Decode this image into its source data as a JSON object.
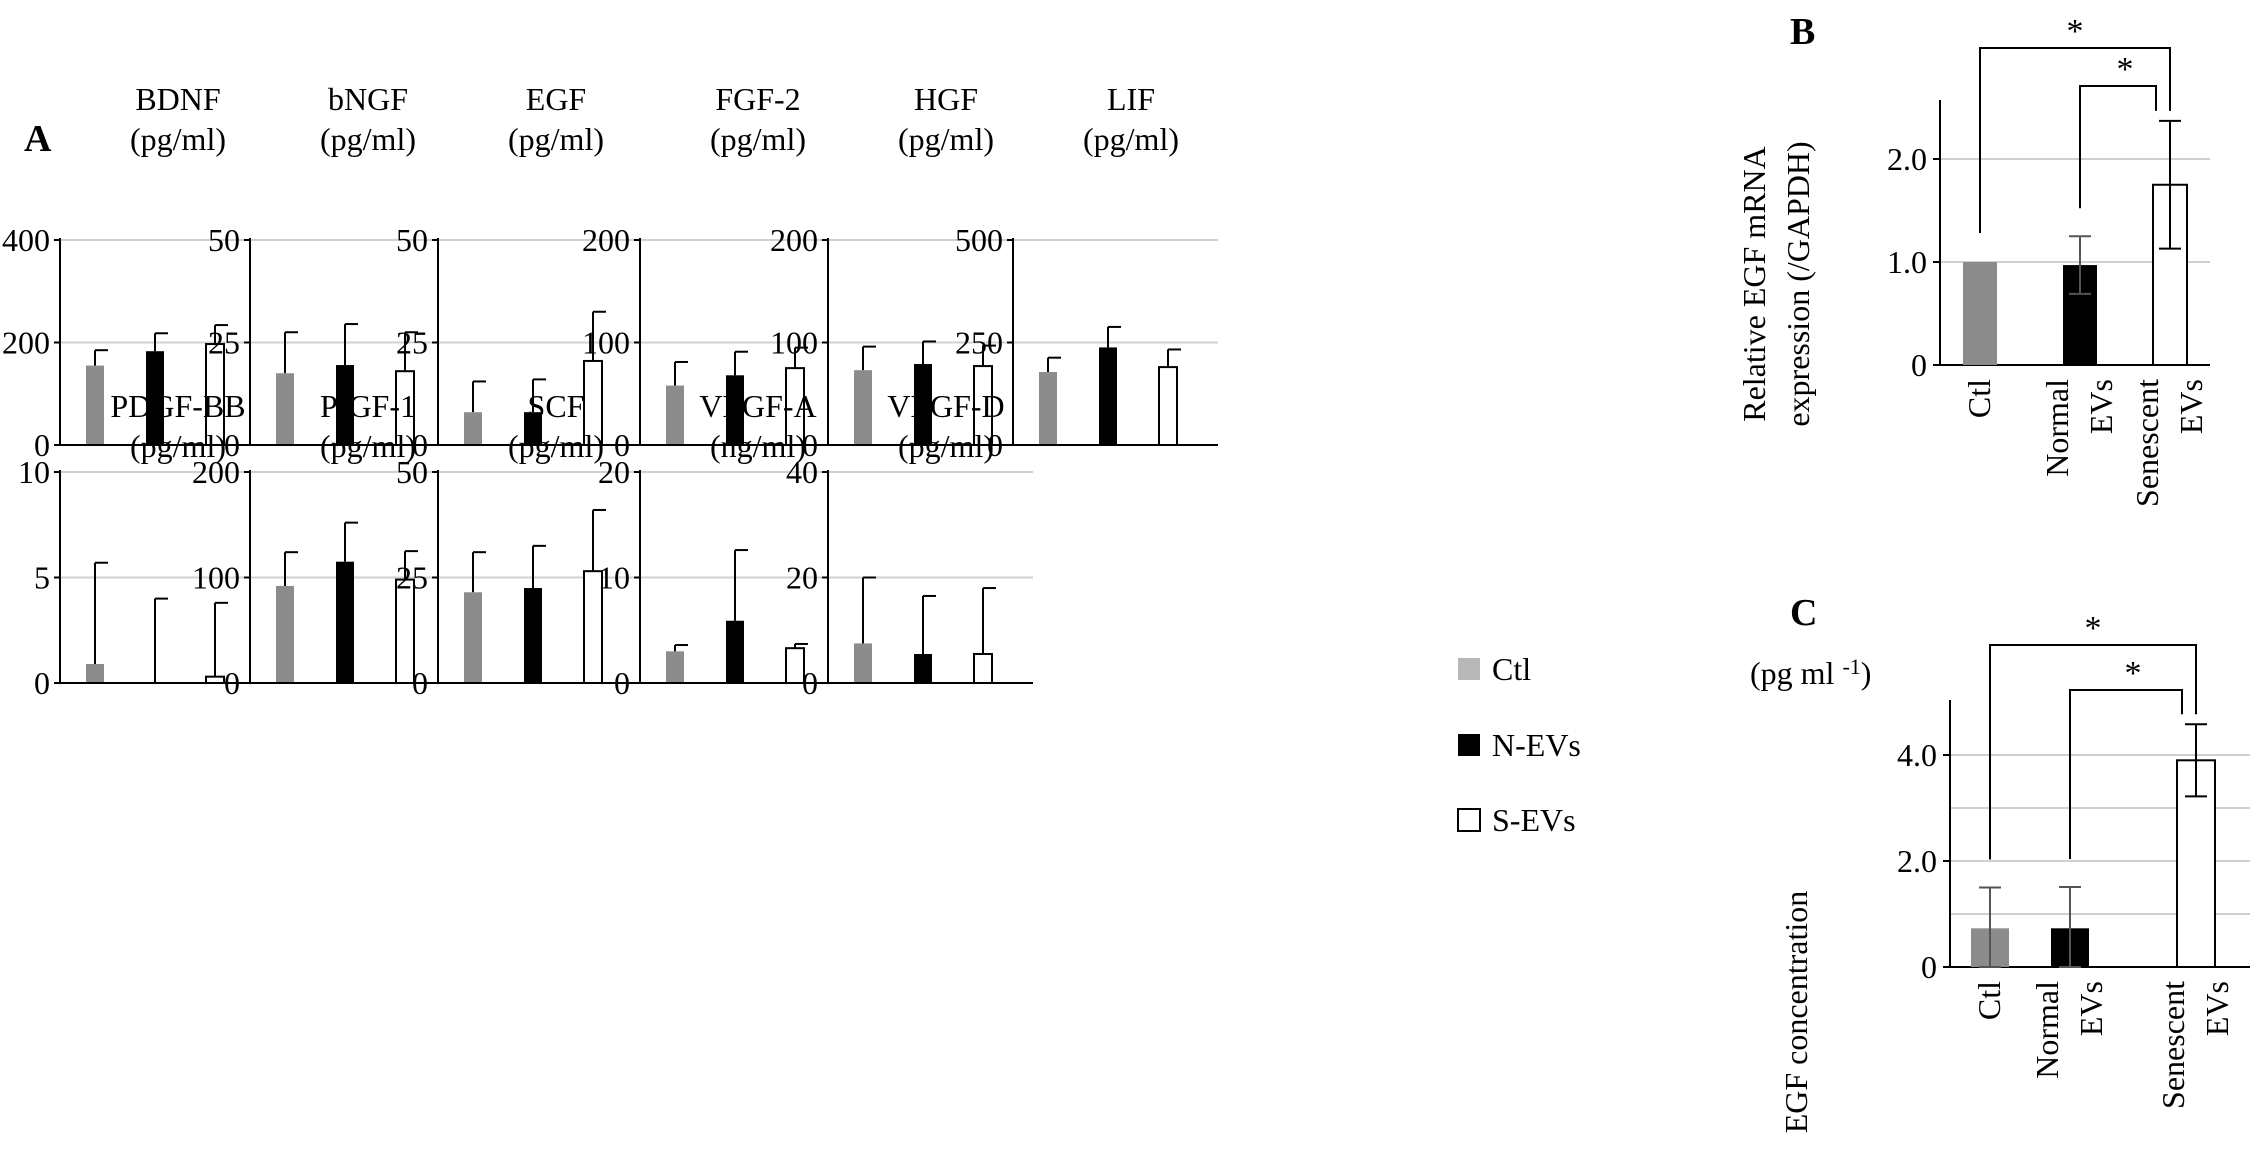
{
  "panel_letters": [
    "A",
    "B",
    "C"
  ],
  "legend": [
    {
      "label": "Ctl",
      "color": "#b8b8b8"
    },
    {
      "label": "N-EVs",
      "color": "#000000"
    },
    {
      "label": "S-EVs",
      "color": "#ffffff"
    }
  ],
  "colors": {
    "ctl_bar": "#8c8c8c",
    "nev_bar": "#000000",
    "sev_bar": "#ffffff",
    "grid": "#d0d0d0"
  },
  "chart_data": [
    {
      "type": "bar",
      "panel": "A",
      "title": "BDNF",
      "unit": "(pg/ml)",
      "categories": [
        "Ctl",
        "N-EVs",
        "S-EVs"
      ],
      "values": [
        155,
        183,
        197
      ],
      "errors": [
        30,
        35,
        37
      ],
      "ylim": [
        0,
        400
      ],
      "yticks": [
        "0",
        "200",
        "400"
      ],
      "ytick_values": [
        0,
        200,
        400
      ]
    },
    {
      "type": "bar",
      "panel": "A",
      "title": "bNGF",
      "unit": "(pg/ml)",
      "categories": [
        "Ctl",
        "N-EVs",
        "S-EVs"
      ],
      "values": [
        17.5,
        19.5,
        18
      ],
      "errors": [
        10,
        10,
        9.5
      ],
      "ylim": [
        0,
        50
      ],
      "yticks": [
        "0",
        "25",
        "50"
      ],
      "ytick_values": [
        0,
        25,
        50
      ]
    },
    {
      "type": "bar",
      "panel": "A",
      "title": "EGF",
      "unit": "(pg/ml)",
      "categories": [
        "Ctl",
        "N-EVs",
        "S-EVs"
      ],
      "values": [
        8,
        8,
        20.5
      ],
      "errors": [
        7.5,
        8,
        12
      ],
      "ylim": [
        0,
        50
      ],
      "yticks": [
        "0",
        "25",
        "50"
      ],
      "ytick_values": [
        0,
        25,
        50
      ]
    },
    {
      "type": "bar",
      "panel": "A",
      "title": "FGF-2",
      "unit": "(pg/ml)",
      "categories": [
        "Ctl",
        "N-EVs",
        "S-EVs"
      ],
      "values": [
        58,
        68,
        75
      ],
      "errors": [
        23,
        23,
        20
      ],
      "ylim": [
        0,
        200
      ],
      "yticks": [
        "0",
        "100",
        "200"
      ],
      "ytick_values": [
        0,
        100,
        200
      ]
    },
    {
      "type": "bar",
      "panel": "A",
      "title": "HGF",
      "unit": "(pg/ml)",
      "categories": [
        "Ctl",
        "N-EVs",
        "S-EVs"
      ],
      "values": [
        73,
        79,
        77
      ],
      "errors": [
        23,
        22,
        20
      ],
      "ylim": [
        0,
        200
      ],
      "yticks": [
        "0",
        "100",
        "200"
      ],
      "ytick_values": [
        0,
        100,
        200
      ]
    },
    {
      "type": "bar",
      "panel": "A",
      "title": "LIF",
      "unit": "(pg/ml)",
      "categories": [
        "Ctl",
        "N-EVs",
        "S-EVs"
      ],
      "values": [
        178,
        238,
        190
      ],
      "errors": [
        35,
        50,
        43
      ],
      "ylim": [
        0,
        500
      ],
      "yticks": [
        "0",
        "250",
        "500"
      ],
      "ytick_values": [
        0,
        250,
        500
      ]
    },
    {
      "type": "bar",
      "panel": "A",
      "title": "PDGF-BB",
      "unit": "(pg/ml)",
      "categories": [
        "Ctl",
        "N-EVs",
        "S-EVs"
      ],
      "values": [
        0.9,
        0,
        0.3
      ],
      "errors": [
        4.8,
        4,
        3.5
      ],
      "ylim": [
        0,
        10
      ],
      "yticks": [
        "0",
        "5",
        "10"
      ],
      "ytick_values": [
        0,
        5,
        10
      ]
    },
    {
      "type": "bar",
      "panel": "A",
      "title": "PIGF-1",
      "unit": "(pg/ml)",
      "categories": [
        "Ctl",
        "N-EVs",
        "S-EVs"
      ],
      "values": [
        92,
        115,
        98
      ],
      "errors": [
        32,
        37,
        27
      ],
      "ylim": [
        0,
        200
      ],
      "yticks": [
        "0",
        "100",
        "200"
      ],
      "ytick_values": [
        0,
        100,
        200
      ]
    },
    {
      "type": "bar",
      "panel": "A",
      "title": "SCF",
      "unit": "(pg/ml)",
      "categories": [
        "Ctl",
        "N-EVs",
        "S-EVs"
      ],
      "values": [
        21.5,
        22.5,
        26.5
      ],
      "errors": [
        9.5,
        10,
        14.5
      ],
      "ylim": [
        0,
        50
      ],
      "yticks": [
        "0",
        "25",
        "50"
      ],
      "ytick_values": [
        0,
        25,
        50
      ]
    },
    {
      "type": "bar",
      "panel": "A",
      "title": "VEGF-A",
      "unit": "(ng/ml)",
      "categories": [
        "Ctl",
        "N-EVs",
        "S-EVs"
      ],
      "values": [
        3,
        5.9,
        3.3
      ],
      "errors": [
        0.6,
        6.7,
        0.4
      ],
      "ylim": [
        0,
        20
      ],
      "yticks": [
        "0",
        "10",
        "20"
      ],
      "ytick_values": [
        0,
        10,
        20
      ]
    },
    {
      "type": "bar",
      "panel": "A",
      "title": "VEGF-D",
      "unit": "(pg/ml)",
      "categories": [
        "Ctl",
        "N-EVs",
        "S-EVs"
      ],
      "values": [
        7.5,
        5.5,
        5.5
      ],
      "errors": [
        12.5,
        11,
        12.5
      ],
      "ylim": [
        0,
        40
      ],
      "yticks": [
        "0",
        "20",
        "40"
      ],
      "ytick_values": [
        0,
        20,
        40
      ]
    },
    {
      "type": "bar",
      "panel": "B",
      "ylabel": [
        "Relative EGF mRNA",
        "expression (/GAPDH)"
      ],
      "categories": [
        [
          "Ctl"
        ],
        [
          "Normal",
          "EVs"
        ],
        [
          "Senescent",
          "EVs"
        ]
      ],
      "values": [
        1.0,
        0.97,
        1.75
      ],
      "errors": [
        0.01,
        0.28,
        0.62
      ],
      "ylim": [
        0,
        2.4
      ],
      "yticks": [
        "0",
        "1.0",
        "2.0"
      ],
      "ytick_values": [
        0,
        1,
        2
      ],
      "significance": [
        "*",
        "*"
      ]
    },
    {
      "type": "bar",
      "panel": "C",
      "ylabel": [
        "EGF concentration"
      ],
      "unit": "(pg ml",
      "unit_superscript": "-1",
      "unit_close": ")",
      "categories": [
        [
          "Ctl"
        ],
        [
          "Normal",
          "EVs"
        ],
        [
          "Senescent",
          "EVs"
        ]
      ],
      "values": [
        0.73,
        0.73,
        3.9
      ],
      "errors": [
        0.77,
        0.78,
        0.68
      ],
      "ylim": [
        0,
        4.8
      ],
      "yticks": [
        "0",
        "2.0",
        "4.0"
      ],
      "ytick_values": [
        0,
        2,
        4
      ],
      "significance": [
        "*",
        "*"
      ]
    }
  ]
}
